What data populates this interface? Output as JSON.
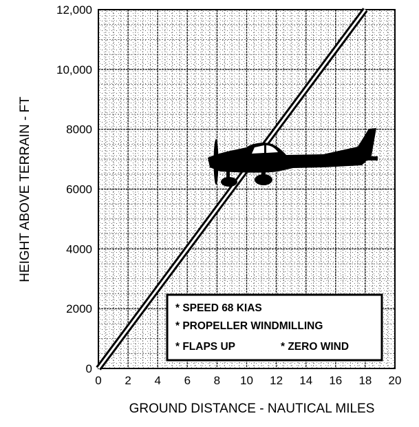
{
  "chart_data": {
    "type": "line",
    "title": "",
    "xlabel": "GROUND DISTANCE - NAUTICAL MILES",
    "ylabel": "HEIGHT ABOVE TERRAIN - FT",
    "xlim": [
      0,
      20
    ],
    "ylim": [
      0,
      12000
    ],
    "x_ticks": [
      "0",
      "2",
      "4",
      "6",
      "8",
      "10",
      "12",
      "14",
      "16",
      "18",
      "20"
    ],
    "y_ticks": [
      "0",
      "2000",
      "4000",
      "6000",
      "8000",
      "10,000",
      "12,000"
    ],
    "grid": true,
    "series": [
      {
        "x": [
          0,
          18
        ],
        "y": [
          0,
          12000
        ]
      }
    ],
    "notes": [
      "* SPEED 68 KIAS",
      "* PROPELLER WINDMILLING",
      "* FLAPS UP",
      "* ZERO WIND"
    ],
    "legend_position": "bottom-right"
  }
}
